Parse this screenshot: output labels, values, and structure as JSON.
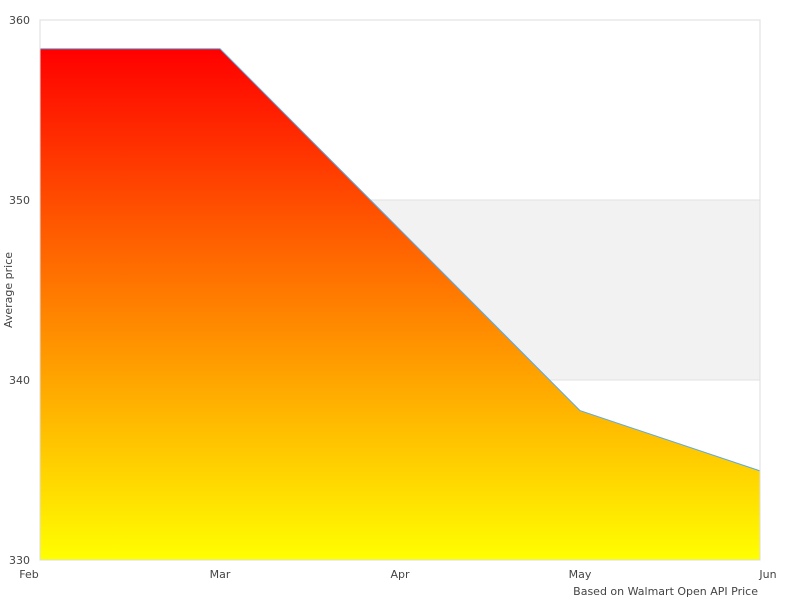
{
  "chart_data": {
    "type": "area",
    "categories": [
      "Feb",
      "Mar",
      "Apr",
      "May",
      "Jun"
    ],
    "series": [
      {
        "values": [
          358.4,
          358.4,
          348.35,
          338.3,
          334.95
        ]
      }
    ],
    "ylabel": "Average price",
    "xlabel": "",
    "ylim": [
      330,
      360
    ],
    "yticks": [
      330,
      340,
      350,
      360
    ],
    "footnote": "Based on Walmart Open API Price",
    "grid": true,
    "shaded_band": [
      340,
      350
    ],
    "colors": {
      "gradient_top": "#ff0000",
      "gradient_bottom": "#ffff00",
      "line": "#5aaae8",
      "band": "#f2f2f2",
      "border": "#dddddd"
    }
  }
}
